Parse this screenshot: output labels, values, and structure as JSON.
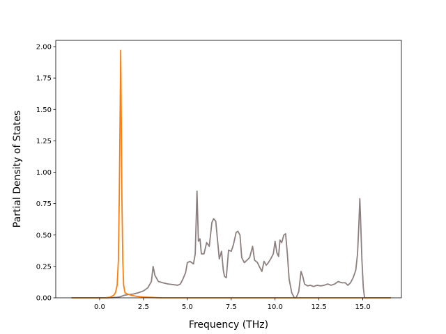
{
  "chart_data": {
    "type": "line",
    "title": "",
    "xlabel": "Frequency (THz)",
    "ylabel": "Partial Density of States",
    "xlim": [
      -2.5,
      17.2
    ],
    "ylim": [
      0.0,
      2.05
    ],
    "x_ticks": [
      0.0,
      2.5,
      5.0,
      7.5,
      10.0,
      12.5,
      15.0
    ],
    "x_tick_labels": [
      "0.0",
      "2.5",
      "5.0",
      "7.5",
      "10.0",
      "12.5",
      "15.0"
    ],
    "y_ticks": [
      0.0,
      0.25,
      0.5,
      0.75,
      1.0,
      1.25,
      1.5,
      1.75,
      2.0
    ],
    "y_tick_labels": [
      "0.00",
      "0.25",
      "0.50",
      "0.75",
      "1.00",
      "1.25",
      "1.50",
      "1.75",
      "2.00"
    ],
    "grid": false,
    "legend": "none",
    "series": [
      {
        "color": "#8c7f7f",
        "points": [
          [
            -1.6,
            0.0
          ],
          [
            0.5,
            0.0
          ],
          [
            0.9,
            0.003
          ],
          [
            1.1,
            0.006
          ],
          [
            1.25,
            0.012
          ],
          [
            1.4,
            0.02
          ],
          [
            1.6,
            0.025
          ],
          [
            1.9,
            0.03
          ],
          [
            2.2,
            0.04
          ],
          [
            2.5,
            0.055
          ],
          [
            2.75,
            0.08
          ],
          [
            2.95,
            0.13
          ],
          [
            3.05,
            0.25
          ],
          [
            3.15,
            0.18
          ],
          [
            3.35,
            0.13
          ],
          [
            3.6,
            0.12
          ],
          [
            3.9,
            0.11
          ],
          [
            4.2,
            0.105
          ],
          [
            4.45,
            0.1
          ],
          [
            4.6,
            0.11
          ],
          [
            4.75,
            0.15
          ],
          [
            4.9,
            0.2
          ],
          [
            5.0,
            0.28
          ],
          [
            5.15,
            0.29
          ],
          [
            5.35,
            0.27
          ],
          [
            5.45,
            0.35
          ],
          [
            5.55,
            0.85
          ],
          [
            5.63,
            0.45
          ],
          [
            5.72,
            0.47
          ],
          [
            5.8,
            0.35
          ],
          [
            5.95,
            0.35
          ],
          [
            6.1,
            0.44
          ],
          [
            6.25,
            0.41
          ],
          [
            6.4,
            0.6
          ],
          [
            6.5,
            0.63
          ],
          [
            6.62,
            0.61
          ],
          [
            6.72,
            0.46
          ],
          [
            6.82,
            0.31
          ],
          [
            6.95,
            0.37
          ],
          [
            7.05,
            0.22
          ],
          [
            7.12,
            0.17
          ],
          [
            7.22,
            0.16
          ],
          [
            7.35,
            0.38
          ],
          [
            7.5,
            0.37
          ],
          [
            7.62,
            0.42
          ],
          [
            7.78,
            0.52
          ],
          [
            7.88,
            0.53
          ],
          [
            8.0,
            0.5
          ],
          [
            8.1,
            0.32
          ],
          [
            8.25,
            0.28
          ],
          [
            8.4,
            0.3
          ],
          [
            8.55,
            0.32
          ],
          [
            8.72,
            0.41
          ],
          [
            8.83,
            0.3
          ],
          [
            9.0,
            0.28
          ],
          [
            9.1,
            0.25
          ],
          [
            9.25,
            0.21
          ],
          [
            9.37,
            0.29
          ],
          [
            9.5,
            0.26
          ],
          [
            9.62,
            0.28
          ],
          [
            9.75,
            0.31
          ],
          [
            9.9,
            0.35
          ],
          [
            10.0,
            0.45
          ],
          [
            10.1,
            0.36
          ],
          [
            10.2,
            0.33
          ],
          [
            10.28,
            0.46
          ],
          [
            10.38,
            0.44
          ],
          [
            10.5,
            0.5
          ],
          [
            10.6,
            0.51
          ],
          [
            10.7,
            0.35
          ],
          [
            10.8,
            0.15
          ],
          [
            10.95,
            0.04
          ],
          [
            11.1,
            0.0
          ],
          [
            11.2,
            0.0
          ],
          [
            11.35,
            0.05
          ],
          [
            11.48,
            0.21
          ],
          [
            11.58,
            0.17
          ],
          [
            11.68,
            0.11
          ],
          [
            11.85,
            0.095
          ],
          [
            12.0,
            0.1
          ],
          [
            12.2,
            0.09
          ],
          [
            12.4,
            0.1
          ],
          [
            12.6,
            0.095
          ],
          [
            12.8,
            0.1
          ],
          [
            13.0,
            0.11
          ],
          [
            13.2,
            0.1
          ],
          [
            13.4,
            0.11
          ],
          [
            13.6,
            0.13
          ],
          [
            13.8,
            0.12
          ],
          [
            14.0,
            0.12
          ],
          [
            14.15,
            0.1
          ],
          [
            14.3,
            0.12
          ],
          [
            14.45,
            0.16
          ],
          [
            14.6,
            0.22
          ],
          [
            14.7,
            0.35
          ],
          [
            14.78,
            0.6
          ],
          [
            14.83,
            0.79
          ],
          [
            14.88,
            0.6
          ],
          [
            14.95,
            0.3
          ],
          [
            15.03,
            0.08
          ],
          [
            15.1,
            0.0
          ],
          [
            16.6,
            0.0
          ]
        ]
      },
      {
        "color": "#ff7f0e",
        "points": [
          [
            -1.6,
            0.0
          ],
          [
            0.3,
            0.0
          ],
          [
            0.6,
            0.005
          ],
          [
            0.8,
            0.02
          ],
          [
            0.9,
            0.04
          ],
          [
            1.0,
            0.1
          ],
          [
            1.07,
            0.3
          ],
          [
            1.12,
            0.8
          ],
          [
            1.17,
            1.5
          ],
          [
            1.2,
            1.97
          ],
          [
            1.23,
            1.5
          ],
          [
            1.27,
            0.8
          ],
          [
            1.32,
            0.3
          ],
          [
            1.37,
            0.1
          ],
          [
            1.45,
            0.04
          ],
          [
            1.6,
            0.03
          ],
          [
            1.8,
            0.02
          ],
          [
            2.1,
            0.012
          ],
          [
            2.5,
            0.006
          ],
          [
            3.0,
            0.003
          ],
          [
            3.5,
            0.0
          ],
          [
            16.6,
            0.0
          ]
        ]
      }
    ]
  }
}
